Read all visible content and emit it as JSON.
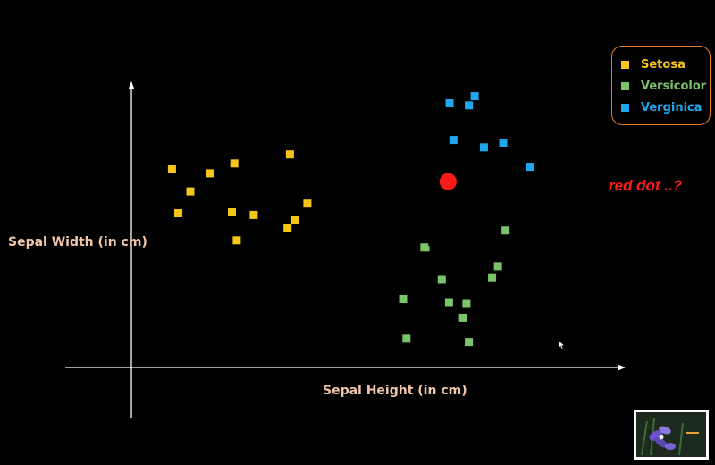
{
  "chart_data": {
    "type": "scatter",
    "title": "",
    "xlabel": "Sepal Height (in cm)",
    "ylabel": "Sepal Width (in cm)",
    "xlim": [
      0,
      100
    ],
    "ylim": [
      0,
      100
    ],
    "grid": false,
    "legend_placement": "top-right",
    "series": [
      {
        "name": "Setosa",
        "color": "#f5c518",
        "points": [
          {
            "x": 8.4,
            "y": 70.2
          },
          {
            "x": 12.2,
            "y": 62.3
          },
          {
            "x": 16.3,
            "y": 68.7
          },
          {
            "x": 9.7,
            "y": 54.6
          },
          {
            "x": 21.3,
            "y": 72.2
          },
          {
            "x": 32.8,
            "y": 75.4
          },
          {
            "x": 20.8,
            "y": 54.9
          },
          {
            "x": 25.3,
            "y": 54.0
          },
          {
            "x": 36.4,
            "y": 58.0
          },
          {
            "x": 33.9,
            "y": 52.1
          },
          {
            "x": 32.3,
            "y": 49.5
          },
          {
            "x": 21.8,
            "y": 45.0
          }
        ]
      },
      {
        "name": "Versicolor",
        "color": "#7cc46a",
        "points": [
          {
            "x": 60.6,
            "y": 42.5
          },
          {
            "x": 77.4,
            "y": 48.5
          },
          {
            "x": 75.8,
            "y": 35.8
          },
          {
            "x": 64.2,
            "y": 31.0
          },
          {
            "x": 56.2,
            "y": 24.2
          },
          {
            "x": 65.7,
            "y": 23.1
          },
          {
            "x": 69.3,
            "y": 22.8
          },
          {
            "x": 68.6,
            "y": 17.6
          },
          {
            "x": 74.6,
            "y": 31.9
          },
          {
            "x": 56.9,
            "y": 10.2
          },
          {
            "x": 69.8,
            "y": 9.0
          }
        ],
        "small_points": [
          {
            "x": 61.1,
            "y": 42.0
          }
        ]
      },
      {
        "name": "Verginica",
        "color": "#1fa8f0",
        "points": [
          {
            "x": 65.8,
            "y": 93.5
          },
          {
            "x": 71.0,
            "y": 96.0
          },
          {
            "x": 69.8,
            "y": 92.8
          },
          {
            "x": 66.6,
            "y": 80.5
          },
          {
            "x": 72.9,
            "y": 77.9
          },
          {
            "x": 76.9,
            "y": 79.6
          },
          {
            "x": 82.4,
            "y": 71.0
          }
        ]
      }
    ],
    "highlight_points": [
      {
        "x": 65.5,
        "y": 65.8,
        "color": "#ff1a1a"
      }
    ],
    "annotations": [
      {
        "text": "red dot ..?",
        "color": "#ff1a1a"
      }
    ]
  },
  "legend": {
    "items": [
      {
        "label": "Setosa",
        "color": "#f5c518"
      },
      {
        "label": "Versicolor",
        "color": "#7cc46a"
      },
      {
        "label": "Verginica",
        "color": "#1fa8f0"
      }
    ]
  },
  "colors": {
    "background": "#000000",
    "axis": "#ffffff",
    "axis_label": "#f2c6a8",
    "legend_border": "#e07b2e"
  },
  "thumbnail": {
    "icon": "iris-flower-thumbnail-icon"
  }
}
